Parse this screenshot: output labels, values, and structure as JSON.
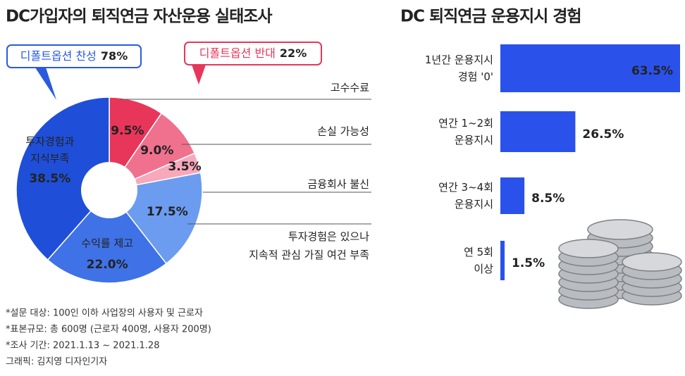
{
  "chart_data": [
    {
      "type": "donut",
      "title": "DC가입자의 퇴직연금 자산운용 실태조사",
      "categories": [
        "고수수료",
        "손실 가능성",
        "금융회사 불신",
        "투자경험은 있으나\n지속적 관심 가질 여건 부족",
        "수익률 제고",
        "투자경험과\n지식부족"
      ],
      "values": [
        9.5,
        9.0,
        3.5,
        17.5,
        22.0,
        38.5
      ],
      "value_labels": [
        "9.5%",
        "9.0%",
        "3.5%",
        "17.5%",
        "22.0%",
        "38.5%"
      ],
      "colors": [
        "#e8365a",
        "#f0718e",
        "#f7a8ba",
        "#6c9cf0",
        "#3f72e6",
        "#1f4fd8"
      ],
      "groups": {
        "names": [
          "디폴트옵션 찬성",
          "디폴트옵션 반대"
        ],
        "values": [
          78,
          22
        ],
        "value_labels": [
          "78%",
          "22%"
        ],
        "colors": [
          "#2a5ae0",
          "#e8365a"
        ]
      },
      "notes": [
        "*설문 대상: 100인 이하 사업장의 사용자 및 근로자",
        "*표본규모: 총 600명 (근로자 400명, 사용자 200명)",
        "*조사 기간: 2021.1.13 ~ 2021.1.28",
        "그래픽: 김지영 디자인기자"
      ]
    },
    {
      "type": "bar",
      "orientation": "horizontal",
      "title": "DC 퇴직연금 운용지시 경험",
      "categories": [
        "1년간 운용지시\n경험 '0'",
        "연간 1~2회\n운용지시",
        "연간 3~4회\n운용지시",
        "연 5회\n이상"
      ],
      "values": [
        63.5,
        26.5,
        8.5,
        1.5
      ],
      "value_labels": [
        "63.5%",
        "26.5%",
        "8.5%",
        "1.5%"
      ],
      "color": "#2a52ea"
    }
  ]
}
